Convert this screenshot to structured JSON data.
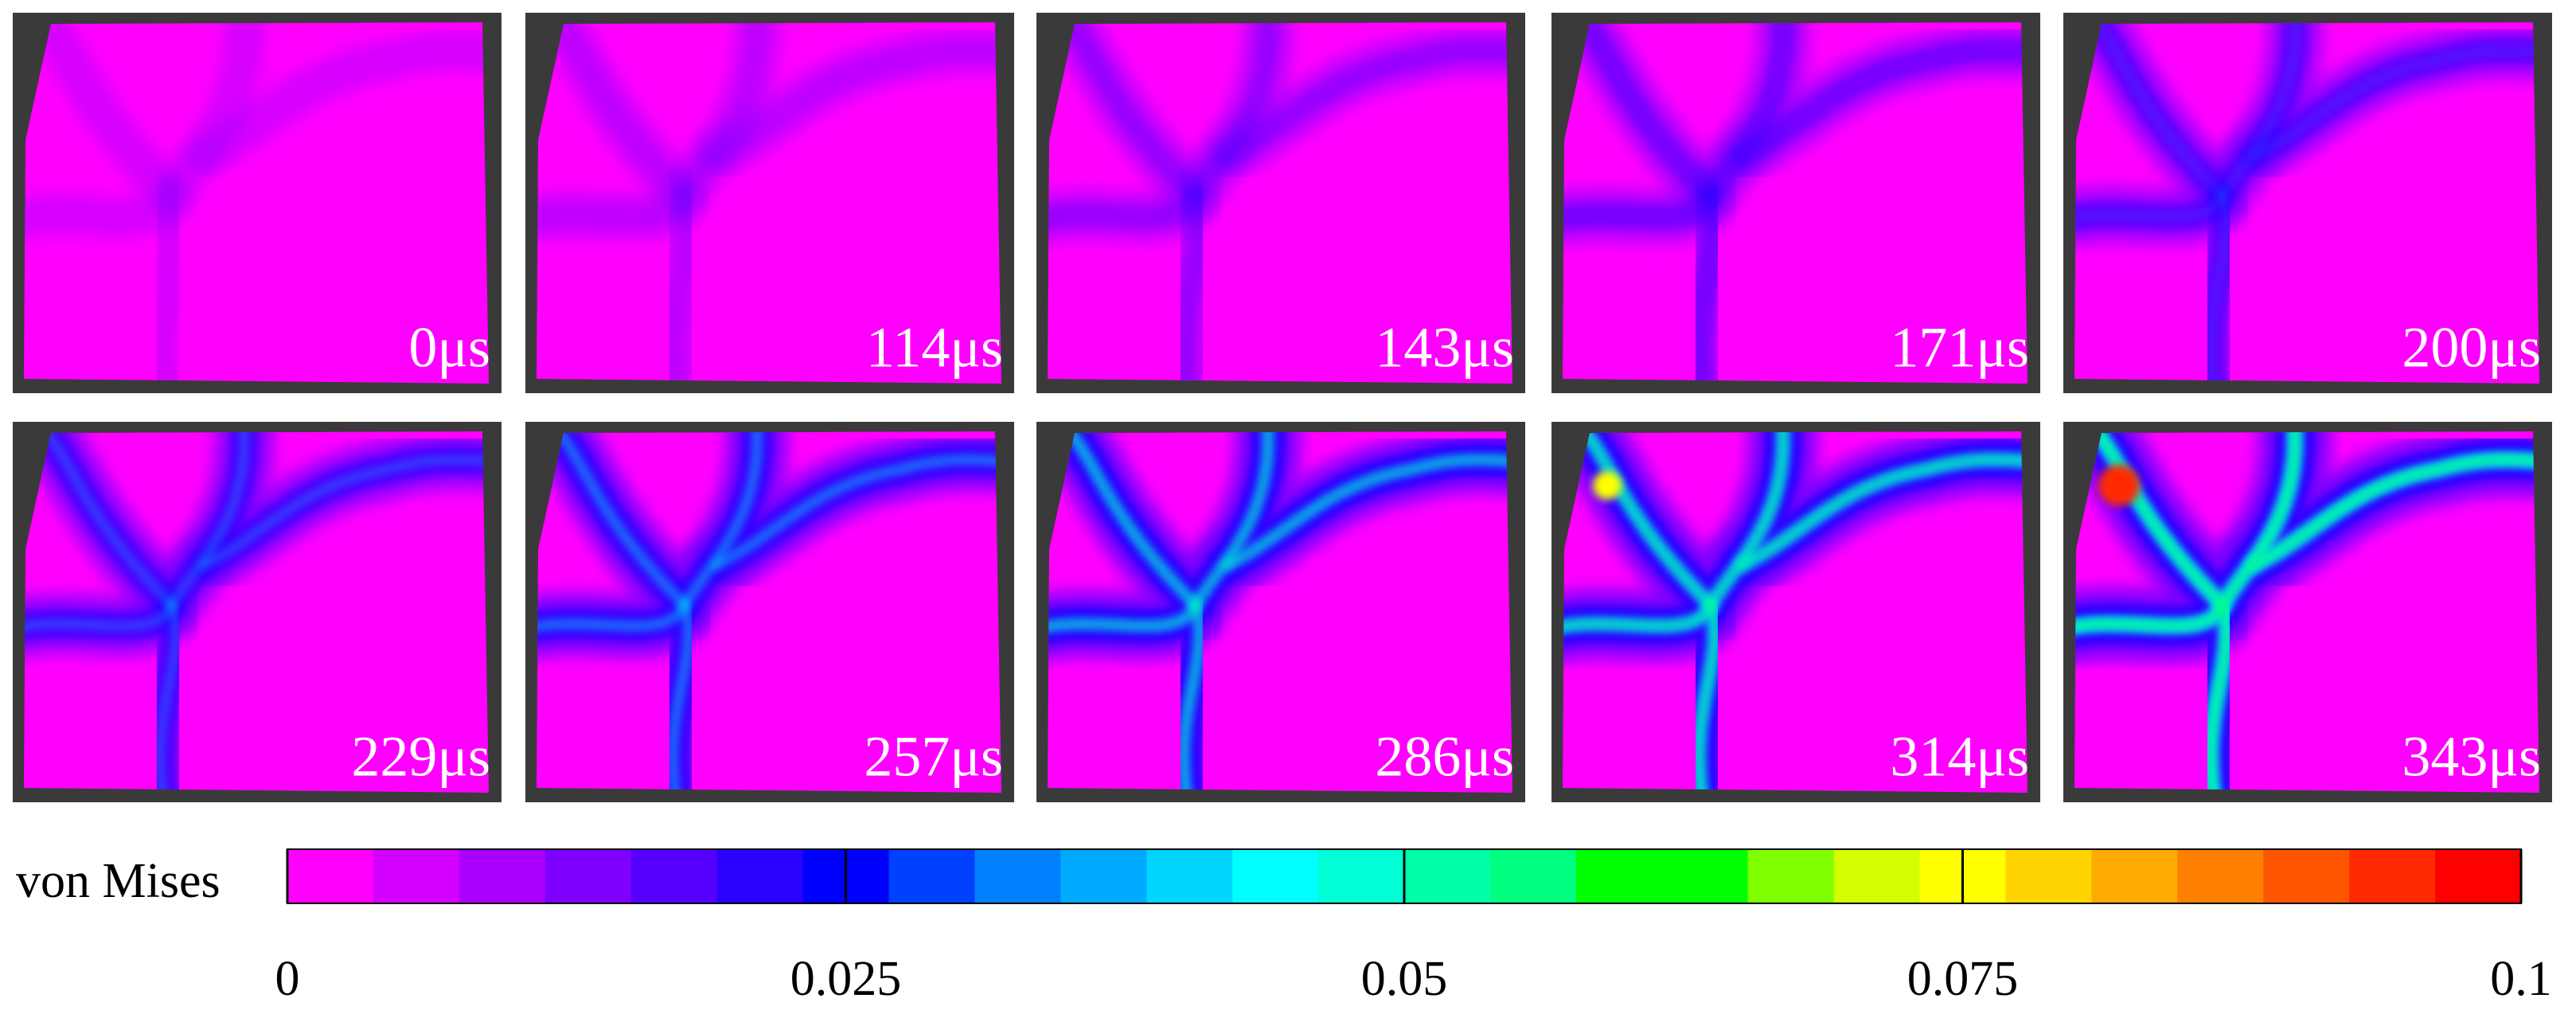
{
  "panels": [
    {
      "label": "0μs"
    },
    {
      "label": "114μs"
    },
    {
      "label": "143μs"
    },
    {
      "label": "171μs"
    },
    {
      "label": "200μs"
    },
    {
      "label": "229μs"
    },
    {
      "label": "257μs"
    },
    {
      "label": "286μs"
    },
    {
      "label": "314μs"
    },
    {
      "label": "343μs"
    }
  ],
  "colorbar": {
    "label": "von Mises",
    "lim": [
      0,
      0.1
    ],
    "ticks": [
      0,
      0.025,
      0.05,
      0.075,
      0.1
    ],
    "colors": [
      "#ff00ff",
      "#d400ff",
      "#aa00ff",
      "#8000ff",
      "#5500ff",
      "#2a00ff",
      "#0000ff",
      "#0040ff",
      "#0080ff",
      "#00aaff",
      "#00d4ff",
      "#00ffff",
      "#00ffd4",
      "#00ffaa",
      "#00ff80",
      "#00ff00",
      "#00ff00",
      "#80ff00",
      "#d4ff00",
      "#ffff00",
      "#ffd400",
      "#ffaa00",
      "#ff8000",
      "#ff5500",
      "#ff2a00",
      "#ff0000"
    ]
  }
}
